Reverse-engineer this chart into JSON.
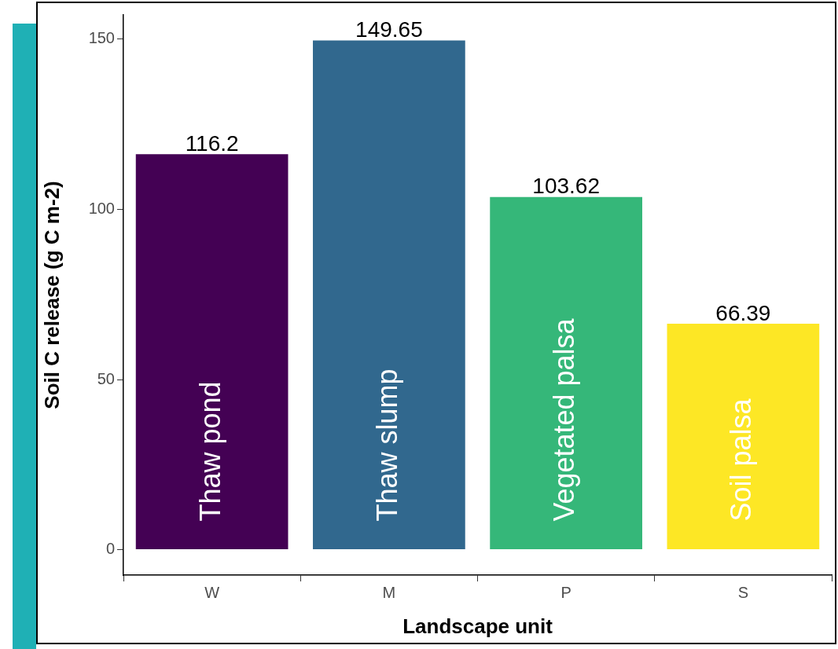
{
  "chart_data": {
    "type": "bar",
    "xlabel": "Landscape unit",
    "ylabel": "Soil C release (g C m-2)",
    "categories": [
      "W",
      "M",
      "P",
      "S"
    ],
    "values": [
      116.2,
      149.65,
      103.62,
      66.39
    ],
    "colors": [
      "#440154",
      "#31688e",
      "#35b779",
      "#fde725"
    ],
    "ylim": [
      -7.48,
      157.13
    ],
    "yticks": [
      0,
      50,
      100,
      150
    ],
    "grid": false,
    "legend": false,
    "data_labels": true,
    "annotations": [
      "Thaw pond",
      "Thaw slump",
      "Vegetated palsa",
      "Soil palsa"
    ]
  }
}
